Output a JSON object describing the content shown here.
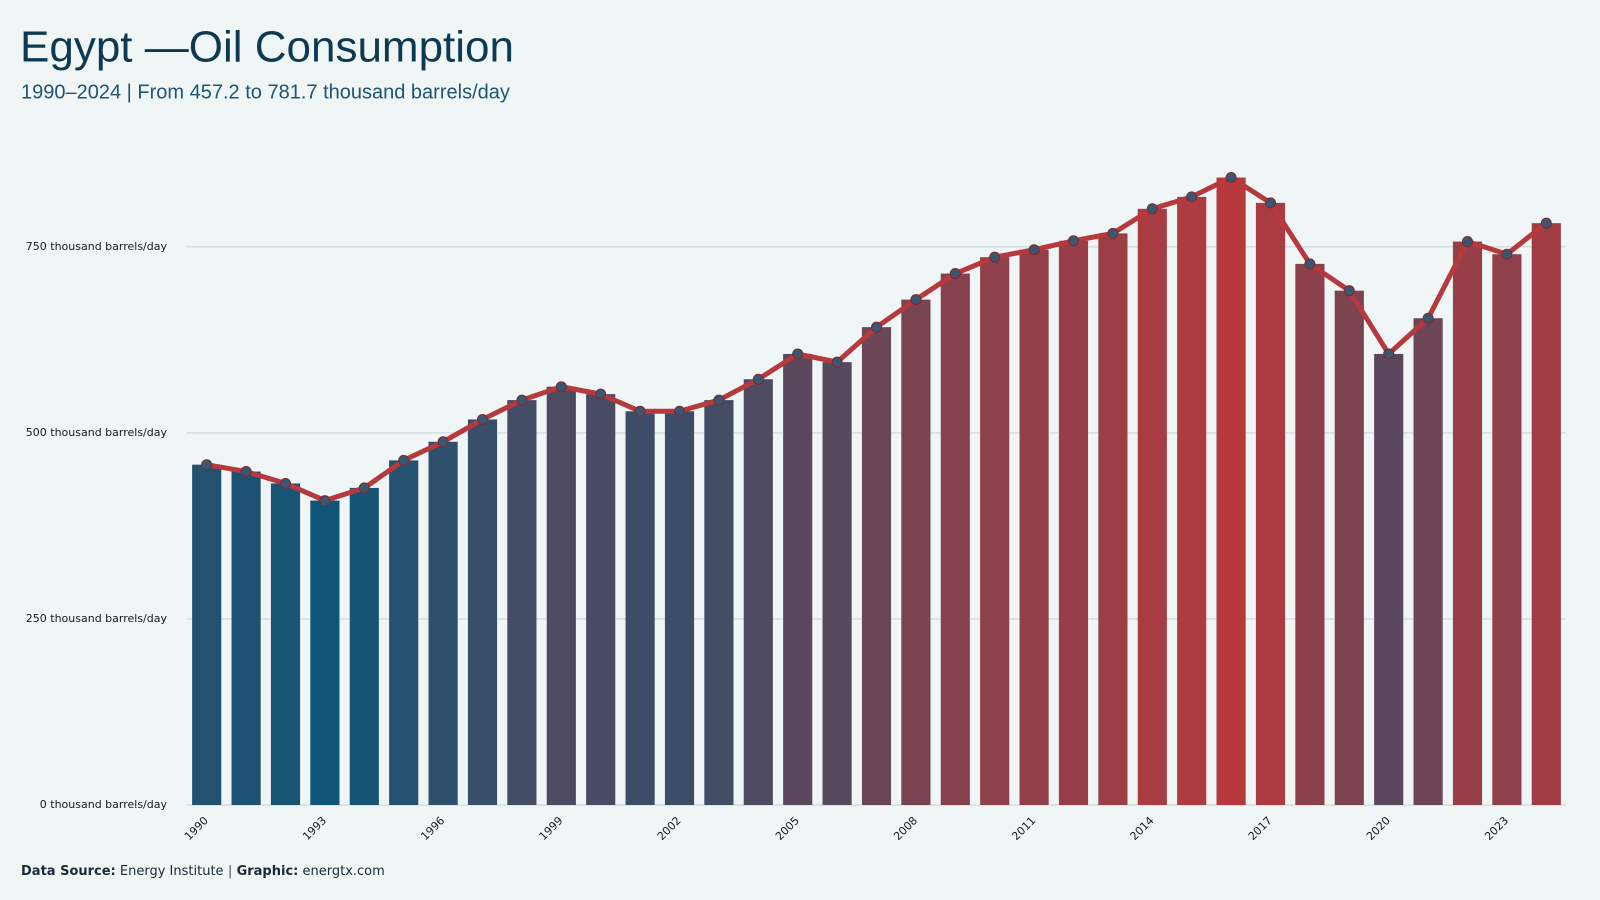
{
  "chart_data": {
    "type": "bar_line",
    "title": "Egypt —Oil Consumption",
    "subtitle": "1990–2024 | From 457.2 to 781.7 thousand barrels/day",
    "categories": [
      "1990",
      null,
      null,
      "1993",
      null,
      null,
      "1996",
      null,
      null,
      "1999",
      null,
      null,
      "2002",
      null,
      null,
      "2005",
      null,
      null,
      "2008",
      null,
      null,
      "2011",
      null,
      null,
      "2014",
      null,
      null,
      "2017",
      null,
      null,
      "2020",
      null,
      null,
      "2023",
      null
    ],
    "values": [
      457.2,
      448,
      432,
      409,
      426,
      463,
      488,
      518,
      544,
      562,
      552,
      529,
      529,
      544,
      572,
      606,
      595,
      642,
      679,
      714,
      736,
      746,
      758,
      768,
      801,
      817,
      843,
      809,
      727,
      691,
      606,
      654,
      757,
      740,
      781.7
    ],
    "color_scale": [
      "#0f5577",
      "#b8393c"
    ],
    "line_color": "#b5393d",
    "marker_color": "#3b5670",
    "ylim": [
      0,
      880
    ],
    "yticks": [
      {
        "value": 0,
        "label": "0 thousand barrels/day"
      },
      {
        "value": 250,
        "label": "250 thousand barrels/day"
      },
      {
        "value": 500,
        "label": "500 thousand barrels/day"
      },
      {
        "value": 750,
        "label": "750 thousand barrels/day"
      }
    ],
    "grid": true,
    "footer": {
      "source_label": "Data Source:",
      "source": "Energy Institute",
      "separator": "|",
      "graphic_label": "Graphic:",
      "graphic": "energtx.com"
    }
  }
}
